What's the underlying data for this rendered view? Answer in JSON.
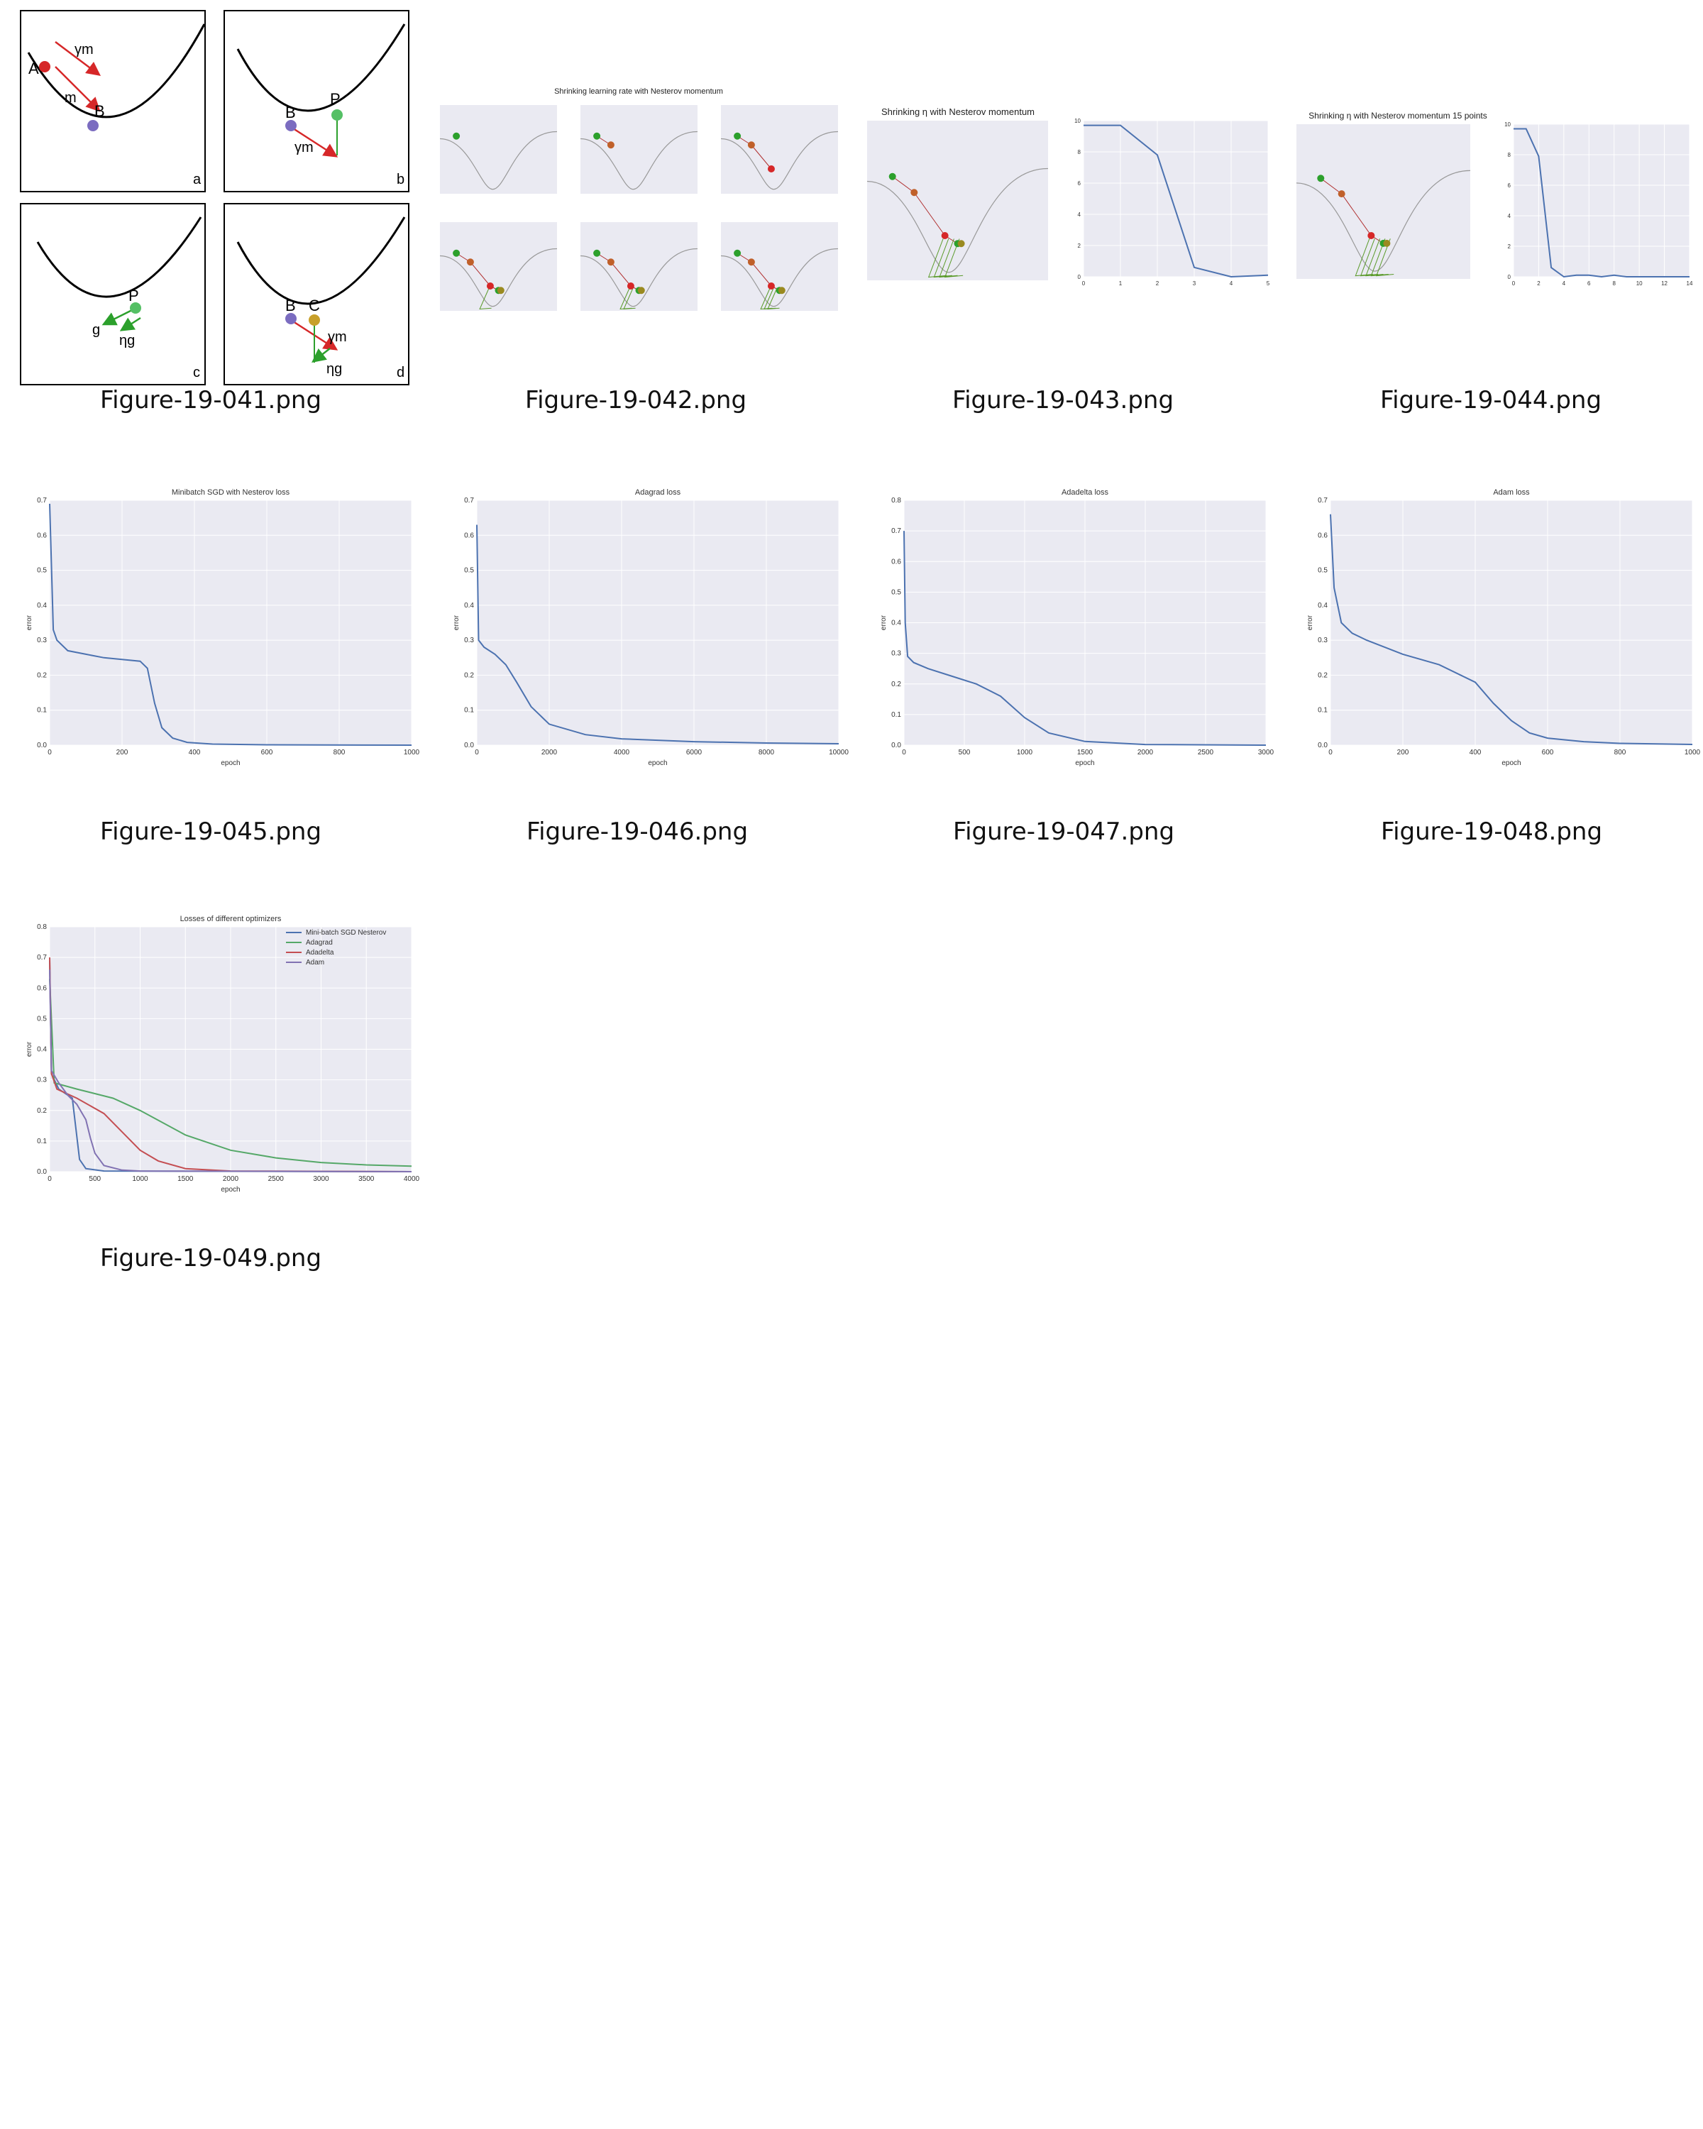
{
  "files": [
    {
      "caption": "Figure-19-041.png"
    },
    {
      "caption": "Figure-19-042.png"
    },
    {
      "caption": "Figure-19-043.png"
    },
    {
      "caption": "Figure-19-044.png"
    },
    {
      "caption": "Figure-19-045.png"
    },
    {
      "caption": "Figure-19-046.png"
    },
    {
      "caption": "Figure-19-047.png"
    },
    {
      "caption": "Figure-19-048.png"
    },
    {
      "caption": "Figure-19-049.png"
    }
  ],
  "fig041": {
    "panels": [
      "a",
      "b",
      "c",
      "d"
    ],
    "labels": {
      "A": "A",
      "B": "B",
      "P": "P",
      "C": "C",
      "gm": "γm",
      "m": "m",
      "g": "g",
      "ng": "ηg"
    }
  },
  "fig042": {
    "title": "Shrinking learning rate with Nesterov momentum"
  },
  "fig043": {
    "title": "Shrinking η with Nesterov momentum",
    "xticks": [
      "0",
      "1",
      "2",
      "3",
      "4",
      "5"
    ],
    "yticks": [
      "0",
      "2",
      "4",
      "6",
      "8",
      "10"
    ]
  },
  "fig044": {
    "title": "Shrinking η with Nesterov momentum 15 points",
    "xticks": [
      "0",
      "2",
      "4",
      "6",
      "8",
      "10",
      "12",
      "14"
    ],
    "yticks": [
      "0",
      "2",
      "4",
      "6",
      "8",
      "10"
    ]
  },
  "fig045": {
    "title": "Minibatch SGD with Nesterov loss",
    "xlabel": "epoch",
    "ylabel": "error",
    "xticks": [
      "0",
      "200",
      "400",
      "600",
      "800",
      "1000"
    ],
    "yticks": [
      "0.0",
      "0.1",
      "0.2",
      "0.3",
      "0.4",
      "0.5",
      "0.6",
      "0.7"
    ]
  },
  "fig046": {
    "title": "Adagrad loss",
    "xlabel": "epoch",
    "ylabel": "error",
    "xticks": [
      "0",
      "2000",
      "4000",
      "6000",
      "8000",
      "10000"
    ],
    "yticks": [
      "0.0",
      "0.1",
      "0.2",
      "0.3",
      "0.4",
      "0.5",
      "0.6",
      "0.7"
    ]
  },
  "fig047": {
    "title": "Adadelta loss",
    "xlabel": "epoch",
    "ylabel": "error",
    "xticks": [
      "0",
      "500",
      "1000",
      "1500",
      "2000",
      "2500",
      "3000"
    ],
    "yticks": [
      "0.0",
      "0.1",
      "0.2",
      "0.3",
      "0.4",
      "0.5",
      "0.6",
      "0.7",
      "0.8"
    ]
  },
  "fig048": {
    "title": "Adam loss",
    "xlabel": "epoch",
    "ylabel": "error",
    "xticks": [
      "0",
      "200",
      "400",
      "600",
      "800",
      "1000"
    ],
    "yticks": [
      "0.0",
      "0.1",
      "0.2",
      "0.3",
      "0.4",
      "0.5",
      "0.6",
      "0.7"
    ]
  },
  "fig049": {
    "title": "Losses of different optimizers",
    "xlabel": "epoch",
    "ylabel": "error",
    "xticks": [
      "0",
      "500",
      "1000",
      "1500",
      "2000",
      "2500",
      "3000",
      "3500",
      "4000"
    ],
    "yticks": [
      "0.0",
      "0.1",
      "0.2",
      "0.3",
      "0.4",
      "0.5",
      "0.6",
      "0.7",
      "0.8"
    ],
    "legend": [
      "Mini-batch SGD Nesterov",
      "Adagrad",
      "Adadelta",
      "Adam"
    ]
  },
  "colors": {
    "blue": "#4c72b0",
    "green": "#55a868",
    "red": "#c44e52",
    "purple": "#8172b2",
    "panel": "#eaeaf2",
    "grid": "#ffffff",
    "ball_red": "#d62728",
    "ball_green": "#2ca02c",
    "ball_purple": "#7b6cc0",
    "ball_gold": "#c8a02a"
  },
  "chart_data": [
    {
      "type": "line",
      "title": "Shrinking η with Nesterov momentum",
      "x": [
        0,
        1,
        2,
        3,
        4,
        5
      ],
      "values": [
        9.7,
        9.7,
        7.8,
        0.6,
        0.0,
        0.1
      ],
      "xlim": [
        0,
        5
      ],
      "ylim": [
        0,
        10
      ]
    },
    {
      "type": "line",
      "title": "Shrinking η with Nesterov momentum 15 points",
      "x": [
        0,
        1,
        2,
        3,
        4,
        5,
        6,
        7,
        8,
        9,
        10,
        11,
        12,
        13,
        14
      ],
      "values": [
        9.7,
        9.7,
        7.9,
        0.6,
        0.0,
        0.1,
        0.1,
        0.0,
        0.1,
        0.0,
        0.0,
        0.0,
        0.0,
        0.0,
        0.0
      ],
      "xlim": [
        0,
        14
      ],
      "ylim": [
        0,
        10
      ]
    },
    {
      "type": "line",
      "title": "Minibatch SGD with Nesterov loss",
      "xlabel": "epoch",
      "ylabel": "error",
      "x": [
        0,
        10,
        20,
        50,
        100,
        150,
        200,
        250,
        270,
        290,
        310,
        340,
        380,
        450,
        600,
        1000
      ],
      "values": [
        0.69,
        0.33,
        0.3,
        0.27,
        0.26,
        0.25,
        0.245,
        0.24,
        0.22,
        0.12,
        0.05,
        0.02,
        0.008,
        0.003,
        0.001,
        0.0
      ],
      "xlim": [
        0,
        1000
      ],
      "ylim": [
        0,
        0.7
      ]
    },
    {
      "type": "line",
      "title": "Adagrad loss",
      "xlabel": "epoch",
      "ylabel": "error",
      "x": [
        0,
        50,
        200,
        500,
        800,
        1100,
        1500,
        2000,
        3000,
        4000,
        6000,
        8000,
        10000
      ],
      "values": [
        0.63,
        0.3,
        0.28,
        0.26,
        0.23,
        0.18,
        0.11,
        0.06,
        0.03,
        0.018,
        0.01,
        0.006,
        0.004
      ],
      "xlim": [
        0,
        10000
      ],
      "ylim": [
        0,
        0.7
      ]
    },
    {
      "type": "line",
      "title": "Adadelta loss",
      "xlabel": "epoch",
      "ylabel": "error",
      "x": [
        0,
        10,
        30,
        80,
        200,
        400,
        600,
        800,
        1000,
        1200,
        1500,
        2000,
        3000
      ],
      "values": [
        0.7,
        0.4,
        0.29,
        0.27,
        0.25,
        0.225,
        0.2,
        0.16,
        0.09,
        0.04,
        0.012,
        0.002,
        0.0
      ],
      "xlim": [
        0,
        3000
      ],
      "ylim": [
        0,
        0.8
      ]
    },
    {
      "type": "line",
      "title": "Adam loss",
      "xlabel": "epoch",
      "ylabel": "error",
      "x": [
        0,
        10,
        30,
        60,
        100,
        200,
        300,
        400,
        450,
        500,
        550,
        600,
        700,
        800,
        1000
      ],
      "values": [
        0.66,
        0.45,
        0.35,
        0.32,
        0.3,
        0.26,
        0.23,
        0.18,
        0.12,
        0.07,
        0.035,
        0.02,
        0.01,
        0.005,
        0.002
      ],
      "xlim": [
        0,
        1000
      ],
      "ylim": [
        0,
        0.7
      ]
    },
    {
      "type": "line",
      "title": "Losses of different optimizers",
      "xlabel": "epoch",
      "ylabel": "error",
      "xlim": [
        0,
        4000
      ],
      "ylim": [
        0,
        0.8
      ],
      "series": [
        {
          "name": "Mini-batch SGD Nesterov",
          "x": [
            0,
            20,
            100,
            200,
            250,
            290,
            330,
            400,
            600,
            4000
          ],
          "values": [
            0.69,
            0.32,
            0.27,
            0.25,
            0.24,
            0.14,
            0.04,
            0.01,
            0.002,
            0.0
          ]
        },
        {
          "name": "Adagrad",
          "x": [
            0,
            50,
            300,
            700,
            1000,
            1500,
            2000,
            2500,
            3000,
            3500,
            4000
          ],
          "values": [
            0.63,
            0.29,
            0.27,
            0.24,
            0.2,
            0.12,
            0.07,
            0.045,
            0.03,
            0.022,
            0.018
          ]
        },
        {
          "name": "Adadelta",
          "x": [
            0,
            20,
            80,
            300,
            600,
            800,
            1000,
            1200,
            1500,
            2000,
            4000
          ],
          "values": [
            0.7,
            0.32,
            0.27,
            0.24,
            0.19,
            0.13,
            0.07,
            0.035,
            0.01,
            0.002,
            0.0
          ]
        },
        {
          "name": "Adam",
          "x": [
            0,
            20,
            100,
            200,
            300,
            400,
            450,
            500,
            600,
            800,
            1000,
            4000
          ],
          "values": [
            0.66,
            0.33,
            0.29,
            0.25,
            0.22,
            0.17,
            0.11,
            0.06,
            0.02,
            0.005,
            0.002,
            0.0
          ]
        }
      ]
    }
  ]
}
